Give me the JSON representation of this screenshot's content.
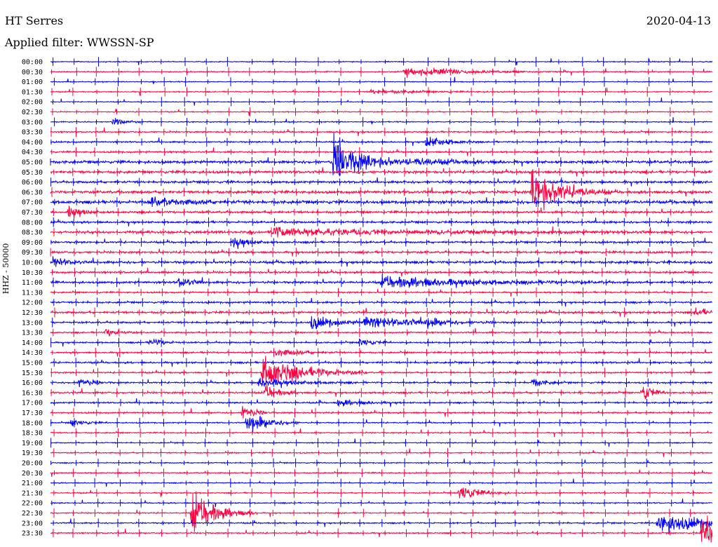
{
  "header": {
    "station": "HT Serres",
    "date": "2020-04-13",
    "filter": "Applied filter: WWSSN-SP"
  },
  "chart_data": {
    "type": "line",
    "title": "HT Serres",
    "date": "2020-04-13",
    "filter": "WWSSN-SP",
    "ylabel": "HHZ - 50000",
    "row_labels": [
      "00:00",
      "00:30",
      "01:00",
      "01:30",
      "02:00",
      "02:30",
      "03:00",
      "03:30",
      "04:00",
      "04:30",
      "05:00",
      "05:30",
      "06:00",
      "06:30",
      "07:00",
      "07:30",
      "08:00",
      "08:30",
      "09:00",
      "09:30",
      "10:00",
      "10:30",
      "11:00",
      "11:30",
      "12:00",
      "12:30",
      "13:00",
      "13:30",
      "14:00",
      "14:30",
      "15:00",
      "15:30",
      "16:00",
      "16:30",
      "17:00",
      "17:30",
      "18:00",
      "18:30",
      "19:00",
      "19:30",
      "20:00",
      "20:30",
      "21:00",
      "21:30",
      "22:00",
      "22:30",
      "23:00",
      "23:30"
    ],
    "row_minutes": 30,
    "trace_colors": [
      "#0000ff",
      "#ff0040"
    ],
    "noise_levels": [
      0.6,
      0.7,
      0.6,
      0.7,
      0.6,
      0.7,
      0.7,
      1.0,
      1.0,
      1.1,
      1.8,
      1.7,
      1.5,
      1.8,
      2.0,
      1.5,
      1.4,
      1.6,
      1.3,
      1.4,
      1.6,
      1.3,
      1.5,
      1.0,
      1.2,
      1.4,
      1.2,
      1.0,
      1.0,
      1.1,
      1.2,
      1.0,
      1.1,
      1.2,
      1.0,
      1.0,
      0.8,
      0.8,
      0.7,
      0.8,
      0.7,
      0.8,
      0.7,
      0.8,
      0.8,
      0.8,
      0.9,
      0.9
    ],
    "events": [
      {
        "row": 1,
        "minute": 16.0,
        "amplitude": 6,
        "duration": 2.5
      },
      {
        "row": 3,
        "minute": 14.5,
        "amplitude": 3,
        "duration": 2.0
      },
      {
        "row": 6,
        "minute": 2.8,
        "amplitude": 5,
        "duration": 0.5
      },
      {
        "row": 8,
        "minute": 17.0,
        "amplitude": 9,
        "duration": 0.8
      },
      {
        "row": 10,
        "minute": 12.8,
        "amplitude": 30,
        "duration": 1.2
      },
      {
        "row": 10,
        "minute": 16.5,
        "amplitude": 5,
        "duration": 1.5
      },
      {
        "row": 13,
        "minute": 21.8,
        "amplitude": 30,
        "duration": 1.2
      },
      {
        "row": 14,
        "minute": 4.5,
        "amplitude": 6,
        "duration": 1.5
      },
      {
        "row": 15,
        "minute": 0.8,
        "amplitude": 8,
        "duration": 0.6
      },
      {
        "row": 17,
        "minute": 10.0,
        "amplitude": 5,
        "duration": 6.0
      },
      {
        "row": 18,
        "minute": 8.3,
        "amplitude": 8,
        "duration": 0.6
      },
      {
        "row": 20,
        "minute": 0.1,
        "amplitude": 8,
        "duration": 0.5
      },
      {
        "row": 22,
        "minute": 15.0,
        "amplitude": 8,
        "duration": 3.5
      },
      {
        "row": 22,
        "minute": 5.8,
        "amplitude": 7,
        "duration": 0.5
      },
      {
        "row": 25,
        "minute": 29.2,
        "amplitude": 7,
        "duration": 0.5
      },
      {
        "row": 26,
        "minute": 11.8,
        "amplitude": 9,
        "duration": 1.0
      },
      {
        "row": 26,
        "minute": 14.2,
        "amplitude": 8,
        "duration": 2.0
      },
      {
        "row": 26,
        "minute": 17.0,
        "amplitude": 7,
        "duration": 0.5
      },
      {
        "row": 27,
        "minute": 2.5,
        "amplitude": 6,
        "duration": 0.5
      },
      {
        "row": 28,
        "minute": 4.5,
        "amplitude": 6,
        "duration": 0.5
      },
      {
        "row": 28,
        "minute": 14.0,
        "amplitude": 6,
        "duration": 0.5
      },
      {
        "row": 29,
        "minute": 10.2,
        "amplitude": 5,
        "duration": 1.0
      },
      {
        "row": 31,
        "minute": 9.6,
        "amplitude": 22,
        "duration": 1.6
      },
      {
        "row": 32,
        "minute": 1.3,
        "amplitude": 7,
        "duration": 0.5
      },
      {
        "row": 32,
        "minute": 9.4,
        "amplitude": 6,
        "duration": 1.5
      },
      {
        "row": 32,
        "minute": 21.8,
        "amplitude": 7,
        "duration": 0.5
      },
      {
        "row": 33,
        "minute": 9.7,
        "amplitude": 10,
        "duration": 0.6
      },
      {
        "row": 33,
        "minute": 26.8,
        "amplitude": 14,
        "duration": 0.4
      },
      {
        "row": 34,
        "minute": 13.0,
        "amplitude": 5,
        "duration": 1.0
      },
      {
        "row": 35,
        "minute": 8.7,
        "amplitude": 10,
        "duration": 0.5
      },
      {
        "row": 36,
        "minute": 8.9,
        "amplitude": 16,
        "duration": 0.8
      },
      {
        "row": 36,
        "minute": 0.9,
        "amplitude": 5,
        "duration": 0.6
      },
      {
        "row": 43,
        "minute": 18.5,
        "amplitude": 12,
        "duration": 0.8
      },
      {
        "row": 45,
        "minute": 6.4,
        "amplitude": 30,
        "duration": 1.0
      },
      {
        "row": 46,
        "minute": 27.5,
        "amplitude": 14,
        "duration": 2.0
      },
      {
        "row": 47,
        "minute": 29.5,
        "amplitude": 20,
        "duration": 4.0
      }
    ]
  }
}
